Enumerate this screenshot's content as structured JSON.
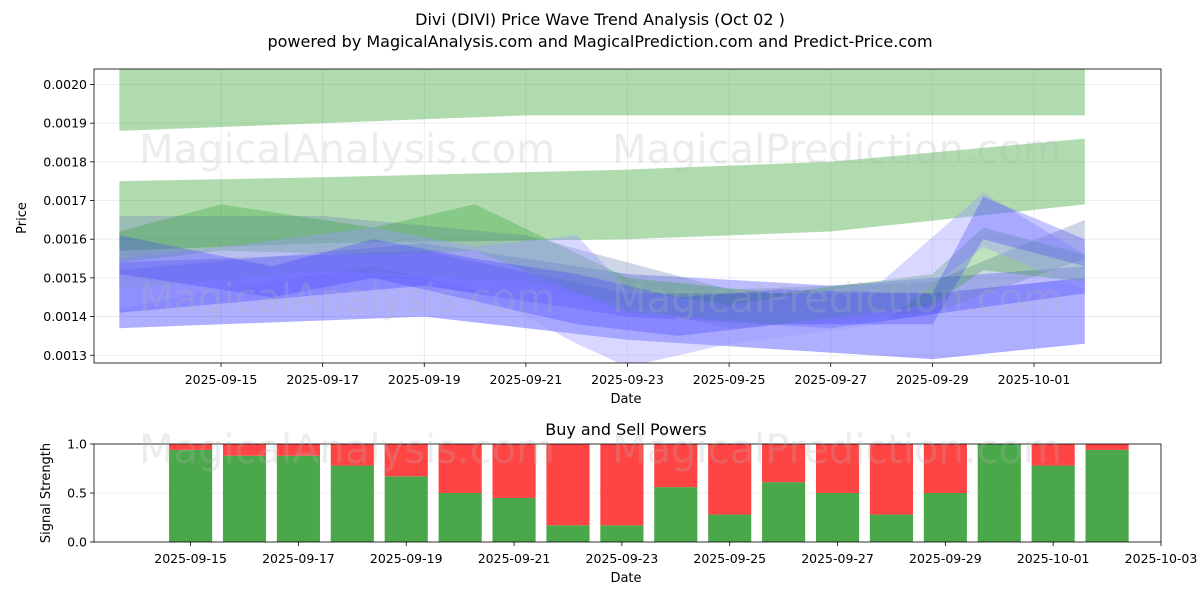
{
  "figure": {
    "title_line1": "Divi (DIVI) Price Wave Trend Analysis (Oct 02 )",
    "title_line2": "powered by MagicalAnalysis.com and MagicalPrediction.com and Predict-Price.com",
    "watermarks": [
      "MagicalAnalysis.com",
      "MagicalPrediction.com"
    ]
  },
  "colors": {
    "green_band": "#2ca02c",
    "blue_band": "#4040ff",
    "buy": "#4aa84a",
    "sell": "#ff4444"
  },
  "chart_data": [
    {
      "type": "area",
      "title": "",
      "xlabel": "Date",
      "ylabel": "Price",
      "x_range": [
        "2025-09-12T12:00",
        "2025-10-03T12:00"
      ],
      "ylim": [
        0.00128,
        0.00204
      ],
      "y_ticks": [
        0.0013,
        0.0014,
        0.0015,
        0.0016,
        0.0017,
        0.0018,
        0.0019,
        0.002
      ],
      "y_tick_labels": [
        "0.0013",
        "0.0014",
        "0.0015",
        "0.0016",
        "0.0017",
        "0.0018",
        "0.0019",
        "0.0020"
      ],
      "x_ticks": [
        "2025-09-15",
        "2025-09-17",
        "2025-09-19",
        "2025-09-21",
        "2025-09-23",
        "2025-09-25",
        "2025-09-27",
        "2025-09-29",
        "2025-10-01"
      ],
      "grid": true,
      "series": [
        {
          "name": "green-upper-channel",
          "color": "green",
          "opacity": 0.38,
          "x": [
            "2025-09-13",
            "2025-09-21",
            "2025-10-02"
          ],
          "upper": [
            0.00205,
            0.00205,
            0.00205
          ],
          "lower": [
            0.00188,
            0.00192,
            0.00192
          ]
        },
        {
          "name": "green-middle-channel",
          "color": "green",
          "opacity": 0.38,
          "x": [
            "2025-09-13",
            "2025-09-17",
            "2025-09-23",
            "2025-09-27",
            "2025-10-02"
          ],
          "upper": [
            0.00175,
            0.00176,
            0.00178,
            0.0018,
            0.00186
          ],
          "lower": [
            0.00157,
            0.00159,
            0.0016,
            0.00162,
            0.00169
          ]
        },
        {
          "name": "blue-lower-channel",
          "color": "blue",
          "opacity": 0.42,
          "x": [
            "2025-09-13",
            "2025-09-19",
            "2025-09-23",
            "2025-09-29",
            "2025-10-02"
          ],
          "upper": [
            0.00154,
            0.00157,
            0.00146,
            0.00146,
            0.0015
          ],
          "lower": [
            0.00137,
            0.0014,
            0.00134,
            0.00129,
            0.00133
          ]
        },
        {
          "name": "blue-mid-channel",
          "color": "blue",
          "opacity": 0.35,
          "x": [
            "2025-09-13",
            "2025-09-19",
            "2025-09-23",
            "2025-09-27",
            "2025-10-02"
          ],
          "upper": [
            0.00152,
            0.00159,
            0.00151,
            0.00148,
            0.00153
          ],
          "lower": [
            0.00141,
            0.00148,
            0.0014,
            0.00137,
            0.00146
          ]
        },
        {
          "name": "steel-channel",
          "color": "slate",
          "opacity": 0.35,
          "x": [
            "2025-09-13",
            "2025-09-17",
            "2025-09-21",
            "2025-09-25",
            "2025-09-29",
            "2025-10-02"
          ],
          "upper": [
            0.00166,
            0.00166,
            0.00161,
            0.00147,
            0.00149,
            0.00165
          ],
          "lower": [
            0.00147,
            0.00152,
            0.00149,
            0.00137,
            0.00141,
            0.00155
          ]
        },
        {
          "name": "green-wave",
          "color": "green",
          "opacity": 0.3,
          "x": [
            "2025-09-13",
            "2025-09-15",
            "2025-09-18",
            "2025-09-20",
            "2025-09-23",
            "2025-09-26",
            "2025-09-29",
            "2025-09-30",
            "2025-10-02"
          ],
          "upper": [
            0.00162,
            0.00169,
            0.00163,
            0.00169,
            0.0015,
            0.00146,
            0.00151,
            0.00163,
            0.00156
          ],
          "lower": [
            0.00154,
            0.00157,
            0.00156,
            0.00157,
            0.00141,
            0.00138,
            0.00143,
            0.00152,
            0.00149
          ]
        },
        {
          "name": "violet-wave",
          "color": "lavender",
          "opacity": 0.4,
          "x": [
            "2025-09-13",
            "2025-09-15",
            "2025-09-18",
            "2025-09-20",
            "2025-09-22",
            "2025-09-23",
            "2025-09-25",
            "2025-09-28",
            "2025-09-30",
            "2025-10-02"
          ],
          "upper": [
            0.00155,
            0.00158,
            0.00163,
            0.00158,
            0.00161,
            0.00147,
            0.00143,
            0.00149,
            0.00172,
            0.00156
          ],
          "lower": [
            0.00142,
            0.00147,
            0.00153,
            0.00147,
            0.00133,
            0.00127,
            0.00133,
            0.00138,
            0.00158,
            0.00147
          ]
        },
        {
          "name": "blue-wave",
          "color": "blue",
          "opacity": 0.3,
          "x": [
            "2025-09-13",
            "2025-09-16",
            "2025-09-18",
            "2025-09-20",
            "2025-09-22",
            "2025-09-24",
            "2025-09-26",
            "2025-09-29",
            "2025-09-30",
            "2025-10-02"
          ],
          "upper": [
            0.00161,
            0.00153,
            0.0016,
            0.00155,
            0.00151,
            0.00145,
            0.00147,
            0.00146,
            0.00171,
            0.0016
          ],
          "lower": [
            0.00151,
            0.00145,
            0.0015,
            0.00144,
            0.00138,
            0.00135,
            0.00138,
            0.00138,
            0.0016,
            0.00153
          ]
        }
      ]
    },
    {
      "type": "bar",
      "title": "Buy and Sell Powers",
      "xlabel": "Date",
      "ylabel": "Signal Strength",
      "ylim": [
        0,
        1
      ],
      "y_ticks": [
        0.0,
        0.5,
        1.0
      ],
      "y_tick_labels": [
        "0.0",
        "0.5",
        "1.0"
      ],
      "x_range": [
        "2025-09-13T05:00",
        "2025-10-03T00:00"
      ],
      "x_ticks": [
        "2025-09-15",
        "2025-09-17",
        "2025-09-19",
        "2025-09-21",
        "2025-09-23",
        "2025-09-25",
        "2025-09-27",
        "2025-09-29",
        "2025-10-01",
        "2025-10-03"
      ],
      "grid": true,
      "categories": [
        "2025-09-15",
        "2025-09-16",
        "2025-09-17",
        "2025-09-18",
        "2025-09-19",
        "2025-09-20",
        "2025-09-21",
        "2025-09-22",
        "2025-09-23",
        "2025-09-24",
        "2025-09-25",
        "2025-09-26",
        "2025-09-27",
        "2025-09-28",
        "2025-09-29",
        "2025-09-30",
        "2025-10-01",
        "2025-10-02"
      ],
      "series": [
        {
          "name": "Buy",
          "values": [
            0.94,
            0.88,
            0.88,
            0.78,
            0.67,
            0.5,
            0.45,
            0.17,
            0.17,
            0.56,
            0.28,
            0.61,
            0.5,
            0.28,
            0.5,
            1.0,
            0.78,
            0.94
          ]
        },
        {
          "name": "Sell",
          "values": [
            0.06,
            0.12,
            0.12,
            0.22,
            0.33,
            0.5,
            0.55,
            0.83,
            0.83,
            0.44,
            0.72,
            0.39,
            0.5,
            0.72,
            0.5,
            0.0,
            0.22,
            0.06
          ]
        }
      ]
    }
  ]
}
